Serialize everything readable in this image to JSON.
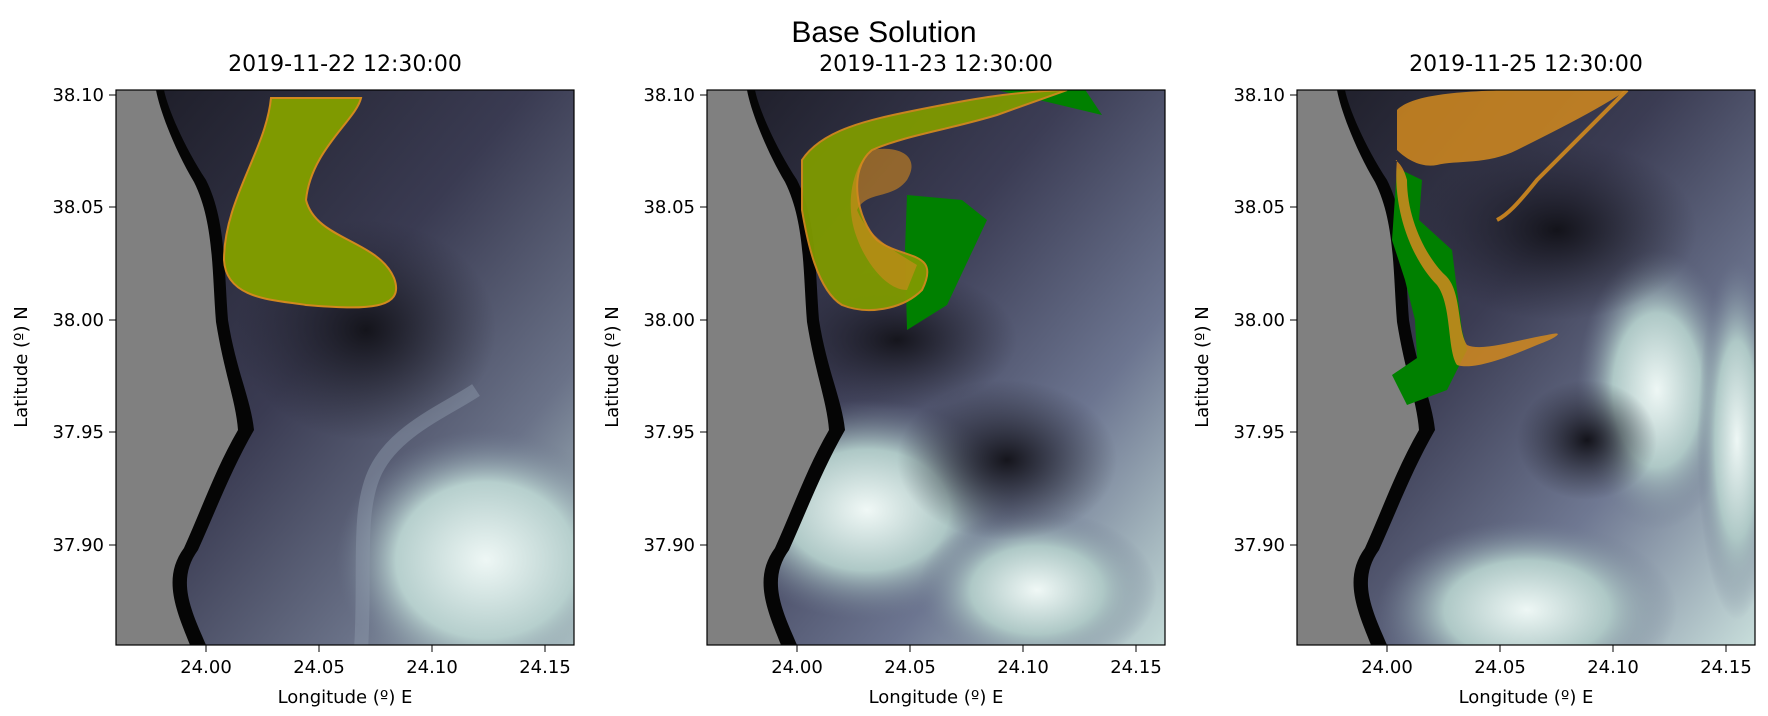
{
  "figure": {
    "title": "Base Solution"
  },
  "chart_data": [
    {
      "type": "map",
      "title": "2019-11-22 12:30:00",
      "xlabel": "Longitude (º) E",
      "ylabel": "Latitude (º) N",
      "xlim": [
        23.96,
        24.163
      ],
      "ylim": [
        37.855,
        38.102
      ],
      "xticks": [
        "24.00",
        "24.05",
        "24.10",
        "24.15"
      ],
      "yticks": [
        "38.10",
        "38.05",
        "38.00",
        "37.95",
        "37.90"
      ],
      "layers": {
        "land_color": "#808080",
        "shore_color": "#050505",
        "field_colormap": [
          "#16161d",
          "#2c2c3d",
          "#4c4e66",
          "#7a8399",
          "#a7c0c0",
          "#e9f4f2"
        ],
        "observed_patch_color": "#008000",
        "predicted_patch_color": "#d2891e"
      }
    },
    {
      "type": "map",
      "title": "2019-11-23 12:30:00",
      "xlabel": "Longitude (º) E",
      "ylabel": "Latitude (º) N",
      "xlim": [
        23.96,
        24.163
      ],
      "ylim": [
        37.855,
        38.102
      ],
      "xticks": [
        "24.00",
        "24.05",
        "24.10",
        "24.15"
      ],
      "yticks": [
        "38.10",
        "38.05",
        "38.00",
        "37.95",
        "37.90"
      ],
      "layers": {
        "land_color": "#808080",
        "shore_color": "#050505",
        "field_colormap": [
          "#16161d",
          "#2c2c3d",
          "#4c4e66",
          "#7a8399",
          "#a7c0c0",
          "#e9f4f2"
        ],
        "observed_patch_color": "#008000",
        "predicted_patch_color": "#d2891e"
      }
    },
    {
      "type": "map",
      "title": "2019-11-25 12:30:00",
      "xlabel": "Longitude (º) E",
      "ylabel": "Latitude (º) N",
      "xlim": [
        23.96,
        24.163
      ],
      "ylim": [
        37.855,
        38.102
      ],
      "xticks": [
        "24.00",
        "24.05",
        "24.10",
        "24.15"
      ],
      "yticks": [
        "38.10",
        "38.05",
        "38.00",
        "37.95",
        "37.90"
      ],
      "layers": {
        "land_color": "#808080",
        "shore_color": "#050505",
        "field_colormap": [
          "#16161d",
          "#2c2c3d",
          "#4c4e66",
          "#7a8399",
          "#a7c0c0",
          "#e9f4f2"
        ],
        "observed_patch_color": "#008000",
        "predicted_patch_color": "#d2891e"
      }
    }
  ]
}
